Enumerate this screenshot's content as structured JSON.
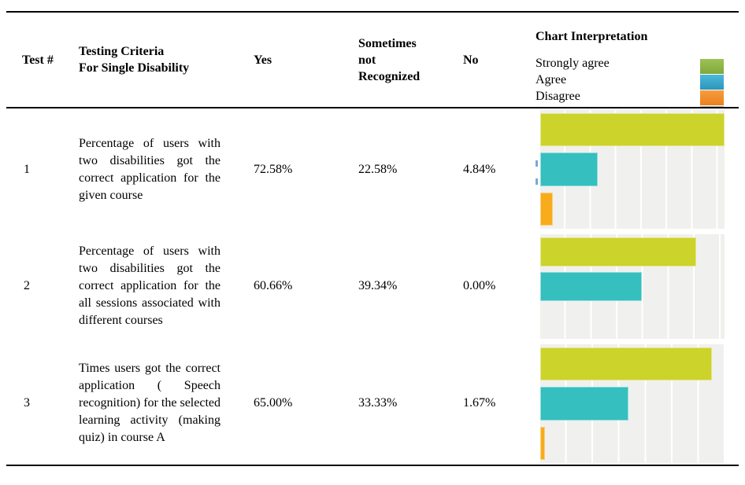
{
  "header": {
    "test": "Test #",
    "criteria": "Testing Criteria\nFor Single Disability",
    "yes": "Yes",
    "sometimes": "Sometimes\nnot\nRecognized",
    "no": "No",
    "chart": "Chart Interpretation"
  },
  "legend": {
    "items": [
      {
        "label": "Strongly agree",
        "swatch_top": "#9dc255",
        "swatch_bottom": "#7fa83a"
      },
      {
        "label": "Agree",
        "swatch_top": "#4cb8da",
        "swatch_bottom": "#2e96ba"
      },
      {
        "label": "Disagree",
        "swatch_top": "#f89c3e",
        "swatch_bottom": "#e8821e"
      }
    ],
    "clipped_strip_color": "#b3b3b3"
  },
  "rows": [
    {
      "test": "1",
      "criteria": "Percentage of users with two disabilities got the correct application for the given course",
      "yes": "72.58%",
      "sometimes": "22.58%",
      "no": "4.84%"
    },
    {
      "test": "2",
      "criteria": "Percentage of users with two disabilities got the correct application for the all sessions associated with different courses",
      "yes": "60.66%",
      "sometimes": "39.34%",
      "no": "0.00%"
    },
    {
      "test": "3",
      "criteria": "Times users got the correct application ( Speech recognition) for the selected learning activity (making quiz) in course A",
      "yes": "65.00%",
      "sometimes": "33.33%",
      "no": "1.67%"
    }
  ],
  "chart_data": [
    {
      "type": "bar",
      "orientation": "horizontal",
      "title": "Chart Interpretation",
      "categories": [
        "Strongly agree",
        "Agree",
        "Disagree"
      ],
      "values": [
        72.58,
        22.58,
        4.84
      ],
      "colors": [
        "#ccd32b",
        "#35bfbf",
        "#f8ac1c"
      ],
      "xlim": [
        0,
        72.6
      ],
      "grid": true,
      "grid_step_percent": 10,
      "legend_position": "table-header"
    },
    {
      "type": "bar",
      "orientation": "horizontal",
      "title": "Chart Interpretation",
      "categories": [
        "Strongly agree",
        "Agree",
        "Disagree"
      ],
      "values": [
        60.66,
        39.34,
        0.0
      ],
      "colors": [
        "#ccd32b",
        "#35bfbf",
        "#f8ac1c"
      ],
      "xlim": [
        0,
        71.6
      ],
      "grid": true,
      "grid_step_percent": 10,
      "legend_position": "table-header"
    },
    {
      "type": "bar",
      "orientation": "horizontal",
      "title": "Chart Interpretation",
      "categories": [
        "Strongly agree",
        "Agree",
        "Disagree"
      ],
      "values": [
        65.0,
        33.33,
        1.67
      ],
      "colors": [
        "#ccd32b",
        "#35bfbf",
        "#f8ac1c"
      ],
      "xlim": [
        0,
        69.7
      ],
      "grid": true,
      "grid_step_percent": 10,
      "legend_position": "table-header"
    }
  ],
  "colors": {
    "plot_bg": "#f0f0ee",
    "gridline": "#ffffff",
    "rule": "#000000",
    "axis_fragment_blue": "#7ba7d7"
  }
}
